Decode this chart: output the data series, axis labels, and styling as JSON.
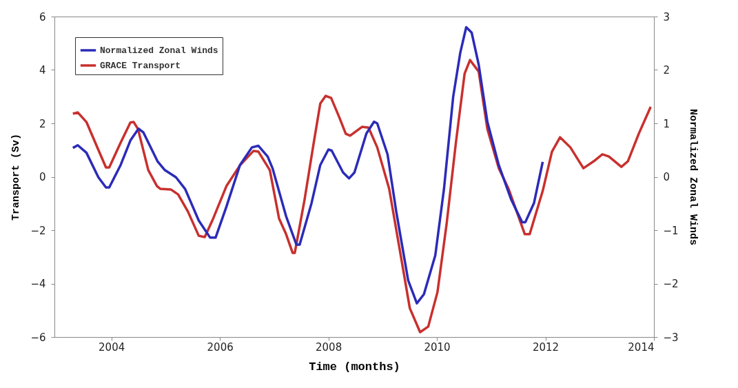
{
  "chart_data": {
    "type": "line",
    "xlabel": "Time (months)",
    "ylabel": "Transport (Sv)",
    "y2label": "Normalized Zonal Winds",
    "xlim": [
      2002.95,
      2014
    ],
    "xticks": [
      2004,
      2006,
      2008,
      2010,
      2012,
      2014
    ],
    "ylim": [
      -6,
      6
    ],
    "yticks": [
      -6,
      -4,
      -2,
      0,
      2,
      4,
      6
    ],
    "y2lim": [
      -3,
      3
    ],
    "y2ticks": [
      -3,
      -2,
      -1,
      0,
      1,
      2,
      3
    ],
    "grid": false,
    "legend": "top left",
    "line_style": "solid",
    "marker": "none",
    "series": [
      {
        "name": "Normalized Zonal Winds",
        "color": "#2b2bb8",
        "axis": "y2",
        "x": [
          2003.29,
          2003.38,
          2003.54,
          2003.76,
          2003.9,
          2003.96,
          2004.17,
          2004.35,
          2004.5,
          2004.59,
          2004.85,
          2004.98,
          2005.19,
          2005.36,
          2005.61,
          2005.82,
          2005.92,
          2006.12,
          2006.37,
          2006.59,
          2006.71,
          2006.88,
          2006.97,
          2007.22,
          2007.41,
          2007.47,
          2007.69,
          2007.85,
          2008.0,
          2008.06,
          2008.27,
          2008.38,
          2008.48,
          2008.7,
          2008.84,
          2008.9,
          2009.09,
          2009.25,
          2009.47,
          2009.63,
          2009.76,
          2009.97,
          2010.13,
          2010.3,
          2010.43,
          2010.54,
          2010.64,
          2010.77,
          2010.93,
          2011.14,
          2011.37,
          2011.57,
          2011.63,
          2011.79,
          2011.95
        ],
        "values": [
          0.54,
          0.59,
          0.45,
          -0.01,
          -0.2,
          -0.2,
          0.22,
          0.68,
          0.9,
          0.83,
          0.29,
          0.13,
          -0.01,
          -0.23,
          -0.82,
          -1.14,
          -1.14,
          -0.56,
          0.22,
          0.55,
          0.58,
          0.38,
          0.16,
          -0.74,
          -1.27,
          -1.27,
          -0.49,
          0.22,
          0.51,
          0.49,
          0.08,
          -0.03,
          0.08,
          0.81,
          1.03,
          1.0,
          0.42,
          -0.65,
          -1.94,
          -2.37,
          -2.2,
          -1.47,
          -0.23,
          1.5,
          2.32,
          2.8,
          2.7,
          2.1,
          1.03,
          0.22,
          -0.43,
          -0.85,
          -0.85,
          -0.49,
          0.28
        ]
      },
      {
        "name": "GRACE Transport",
        "color": "#c8302e",
        "x": [
          2003.29,
          2003.38,
          2003.54,
          2003.73,
          2003.9,
          2003.96,
          2004.17,
          2004.35,
          2004.41,
          2004.49,
          2004.68,
          2004.84,
          2004.9,
          2005.1,
          2005.23,
          2005.41,
          2005.61,
          2005.72,
          2005.86,
          2006.12,
          2006.37,
          2006.62,
          2006.71,
          2006.92,
          2007.09,
          2007.22,
          2007.34,
          2007.38,
          2007.56,
          2007.73,
          2007.85,
          2007.95,
          2008.05,
          2008.2,
          2008.32,
          2008.4,
          2008.62,
          2008.74,
          2008.9,
          2009.12,
          2009.34,
          2009.5,
          2009.69,
          2009.84,
          2010.01,
          2010.18,
          2010.35,
          2010.51,
          2010.61,
          2010.77,
          2010.93,
          2011.14,
          2011.32,
          2011.62,
          2011.71,
          2011.95,
          2012.12,
          2012.27,
          2012.46,
          2012.7,
          2012.89,
          2013.05,
          2013.17,
          2013.4,
          2013.52,
          2013.72,
          2013.94
        ],
        "values": [
          2.36,
          2.41,
          2.05,
          1.15,
          0.35,
          0.35,
          1.28,
          2.03,
          2.05,
          1.79,
          0.25,
          -0.35,
          -0.45,
          -0.48,
          -0.66,
          -1.3,
          -2.21,
          -2.26,
          -1.64,
          -0.35,
          0.43,
          0.97,
          0.94,
          0.25,
          -1.56,
          -2.15,
          -2.85,
          -2.85,
          -0.86,
          1.28,
          2.74,
          3.03,
          2.95,
          2.23,
          1.61,
          1.54,
          1.87,
          1.84,
          1.1,
          -0.45,
          -3.03,
          -4.92,
          -5.82,
          -5.61,
          -4.32,
          -1.74,
          1.28,
          3.86,
          4.37,
          3.94,
          1.79,
          0.32,
          -0.45,
          -2.15,
          -2.15,
          -0.53,
          0.94,
          1.48,
          1.1,
          0.32,
          0.58,
          0.84,
          0.76,
          0.37,
          0.58,
          1.61,
          2.62
        ]
      }
    ]
  }
}
